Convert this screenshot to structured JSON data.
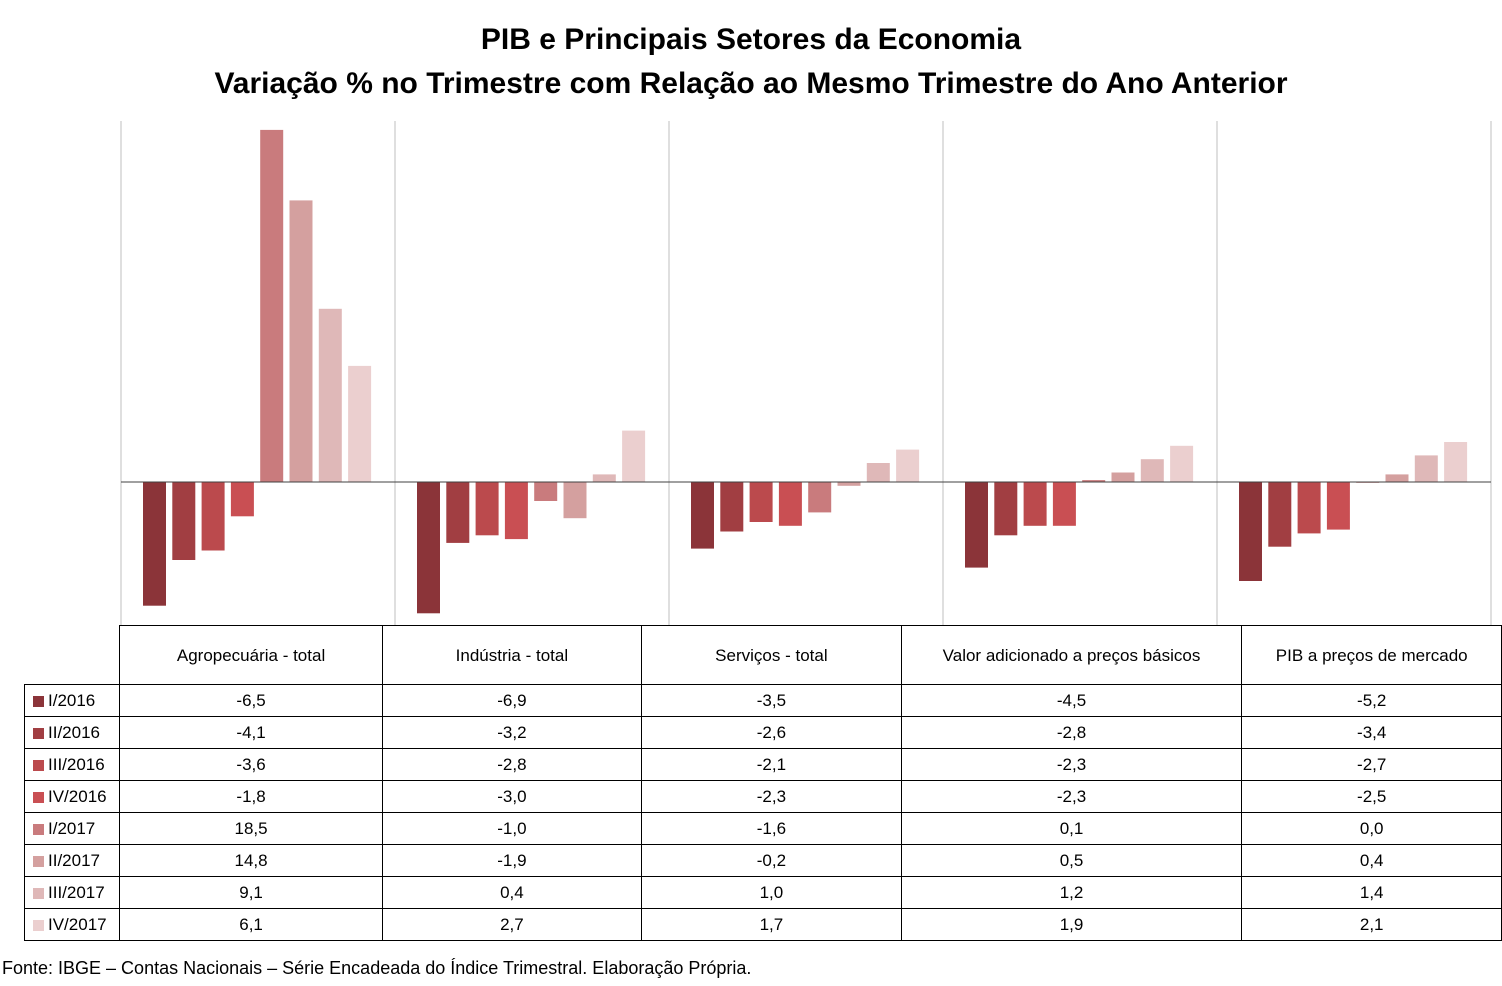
{
  "title_line1": "PIB e Principais Setores da Economia",
  "title_line2": "Variação % no Trimestre com Relação ao Mesmo Trimestre do Ano Anterior",
  "source": "Fonte: IBGE – Contas Nacionais – Série Encadeada do Índice Trimestral. Elaboração Própria.",
  "chart_data": {
    "type": "bar",
    "title": "PIB e Principais Setores da Economia — Variação % no Trimestre com Relação ao Mesmo Trimestre do Ano Anterior",
    "categories": [
      "Agropecuária - total",
      "Indústria - total",
      "Serviços - total",
      "Valor adicionado a preços básicos",
      "PIB a preços de mercado"
    ],
    "series": [
      {
        "name": "I/2016",
        "color": "#8b3439",
        "values": [
          -6.5,
          -6.9,
          -3.5,
          -4.5,
          -5.2
        ],
        "labels": [
          "-6,5",
          "-6,9",
          "-3,5",
          "-4,5",
          "-5,2"
        ]
      },
      {
        "name": "II/2016",
        "color": "#a13e42",
        "values": [
          -4.1,
          -3.2,
          -2.6,
          -2.8,
          -3.4
        ],
        "labels": [
          "-4,1",
          "-3,2",
          "-2,6",
          "-2,8",
          "-3,4"
        ]
      },
      {
        "name": "III/2016",
        "color": "#bb4a4d",
        "values": [
          -3.6,
          -2.8,
          -2.1,
          -2.3,
          -2.7
        ],
        "labels": [
          "-3,6",
          "-2,8",
          "-2,1",
          "-2,3",
          "-2,7"
        ]
      },
      {
        "name": "IV/2016",
        "color": "#c94f53",
        "values": [
          -1.8,
          -3.0,
          -2.3,
          -2.3,
          -2.5
        ],
        "labels": [
          "-1,8",
          "-3,0",
          "-2,3",
          "-2,3",
          "-2,5"
        ]
      },
      {
        "name": "I/2017",
        "color": "#c97b7d",
        "values": [
          18.5,
          -1.0,
          -1.6,
          0.1,
          0.0
        ],
        "labels": [
          "18,5",
          "-1,0",
          "-1,6",
          "0,1",
          "0,0"
        ]
      },
      {
        "name": "II/2017",
        "color": "#d4a09f",
        "values": [
          14.8,
          -1.9,
          -0.2,
          0.5,
          0.4
        ],
        "labels": [
          "14,8",
          "-1,9",
          "-0,2",
          "0,5",
          "0,4"
        ]
      },
      {
        "name": "III/2017",
        "color": "#dfb8b8",
        "values": [
          9.1,
          0.4,
          1.0,
          1.2,
          1.4
        ],
        "labels": [
          "9,1",
          "0,4",
          "1,0",
          "1,2",
          "1,4"
        ]
      },
      {
        "name": "IV/2017",
        "color": "#ebcfcf",
        "values": [
          6.1,
          2.7,
          1.7,
          1.9,
          2.1
        ],
        "labels": [
          "6,1",
          "2,7",
          "1,7",
          "1,9",
          "2,1"
        ]
      }
    ],
    "ylim": [
      -7.5,
      19.0
    ],
    "grid": "vertical separators between categories",
    "legend": "data table below chart"
  }
}
